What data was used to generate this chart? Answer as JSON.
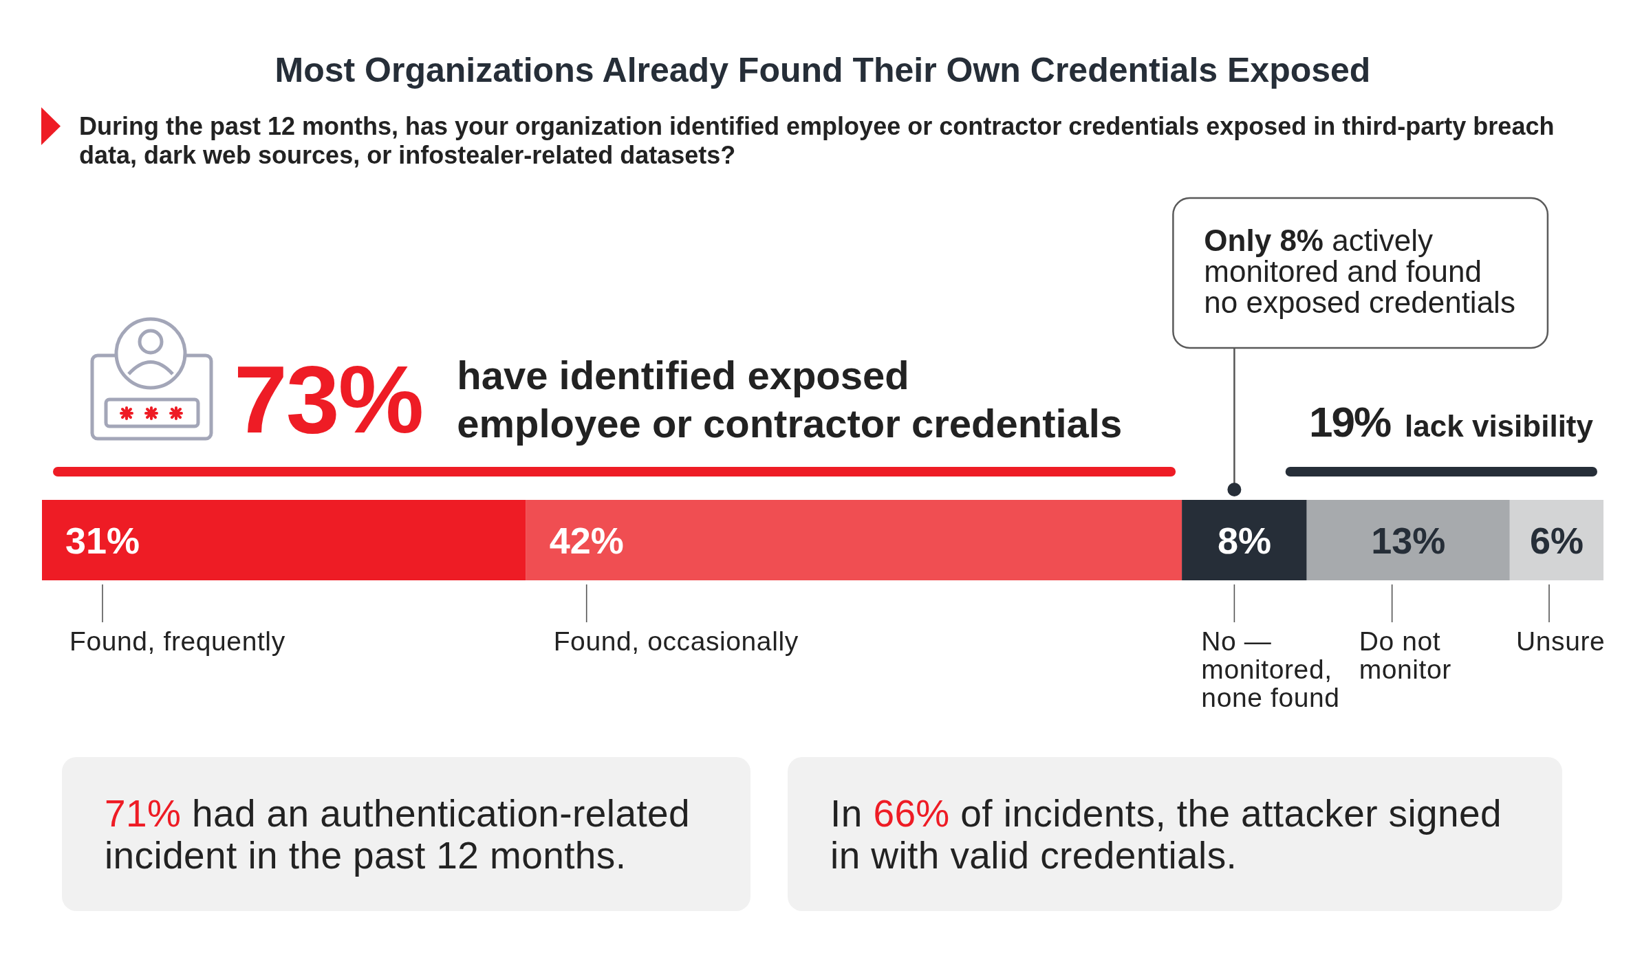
{
  "chart_data": {
    "type": "bar",
    "orientation": "horizontal",
    "stacked": true,
    "title": "Most Organizations Already Found Their Own Credentials Exposed",
    "subtitle": "During the past 12 months, has your organization identified employee or contractor credentials exposed in third-party breach data, dark web sources, or infostealer-related datasets?",
    "categories": [
      null
    ],
    "xlim": [
      0,
      100
    ],
    "tick_labels": false,
    "series": [
      {
        "name": "Found, frequently",
        "color": "#ee1c25",
        "values": [
          31
        ],
        "value_labels": [
          "31%"
        ]
      },
      {
        "name": "Found, occasionally",
        "color": "#f04e52",
        "values": [
          42
        ],
        "value_labels": [
          "42%"
        ]
      },
      {
        "name": "No —\nmonitored,\nnone found",
        "color": "#262e38",
        "values": [
          8
        ],
        "value_labels": [
          "8%"
        ]
      },
      {
        "name": "Do not\nmonitor",
        "color": "#a7aaad",
        "values": [
          13
        ],
        "value_labels": [
          "13%"
        ]
      },
      {
        "name": "Unsure",
        "color": "#d3d4d5",
        "values": [
          6
        ],
        "value_labels": [
          "6%"
        ]
      }
    ],
    "annotations": [
      "73% have identified exposed\nemployee or contractor credentials",
      "19% lack visibility",
      "Only 8% actively\nmonitored and found\nno exposed credentials",
      "71% had an authentication-related\nincident in the past 12 months.",
      "In 66% of incidents, the attacker signed\nin with valid credentials."
    ]
  }
}
